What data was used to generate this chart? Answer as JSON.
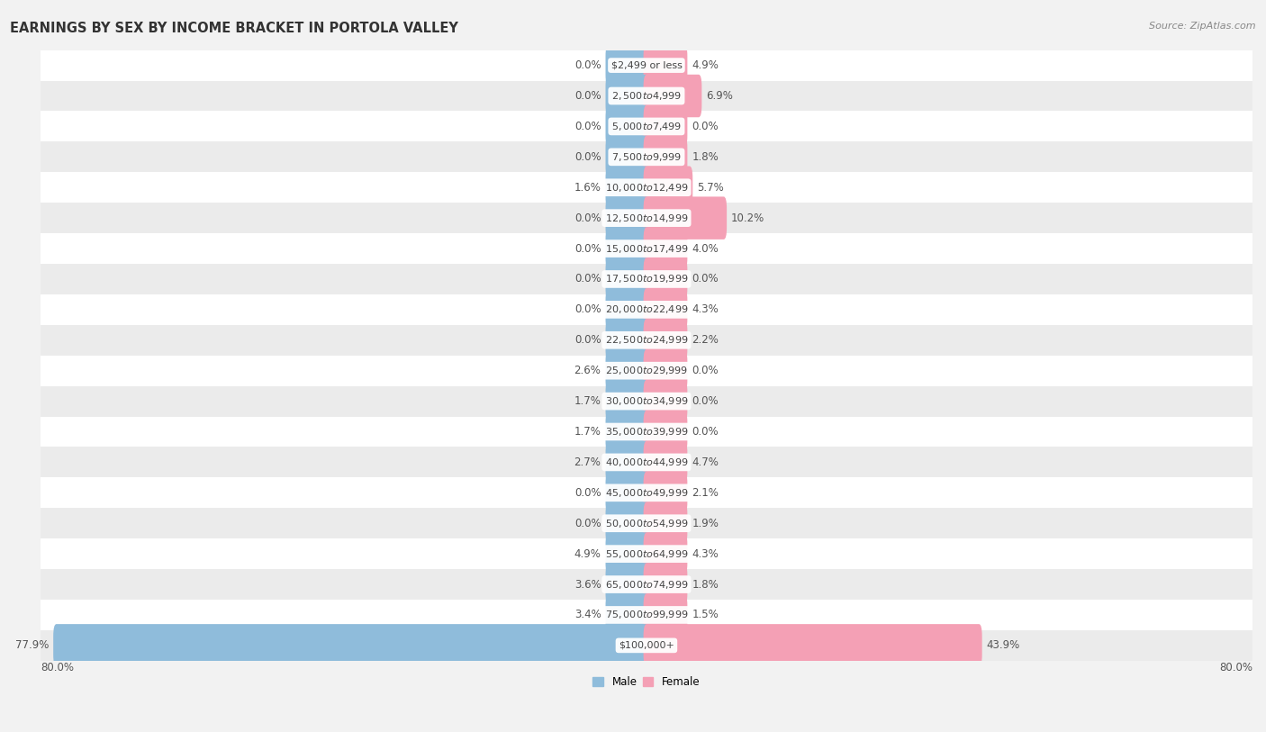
{
  "title": "EARNINGS BY SEX BY INCOME BRACKET IN PORTOLA VALLEY",
  "source": "Source: ZipAtlas.com",
  "categories": [
    "$2,499 or less",
    "$2,500 to $4,999",
    "$5,000 to $7,499",
    "$7,500 to $9,999",
    "$10,000 to $12,499",
    "$12,500 to $14,999",
    "$15,000 to $17,499",
    "$17,500 to $19,999",
    "$20,000 to $22,499",
    "$22,500 to $24,999",
    "$25,000 to $29,999",
    "$30,000 to $34,999",
    "$35,000 to $39,999",
    "$40,000 to $44,999",
    "$45,000 to $49,999",
    "$50,000 to $54,999",
    "$55,000 to $64,999",
    "$65,000 to $74,999",
    "$75,000 to $99,999",
    "$100,000+"
  ],
  "male": [
    0.0,
    0.0,
    0.0,
    0.0,
    1.6,
    0.0,
    0.0,
    0.0,
    0.0,
    0.0,
    2.6,
    1.7,
    1.7,
    2.7,
    0.0,
    0.0,
    4.9,
    3.6,
    3.4,
    77.9
  ],
  "female": [
    4.9,
    6.9,
    0.0,
    1.8,
    5.7,
    10.2,
    4.0,
    0.0,
    4.3,
    2.2,
    0.0,
    0.0,
    0.0,
    4.7,
    2.1,
    1.9,
    4.3,
    1.8,
    1.5,
    43.9
  ],
  "male_color": "#8fbcdb",
  "female_color": "#f4a0b5",
  "male_min_color": "#b8d4e8",
  "female_min_color": "#f9c5d0",
  "axis_max": 80.0,
  "min_bar": 5.0,
  "bg_color": "#f2f2f2",
  "row_light": "#ffffff",
  "row_dark": "#ebebeb",
  "title_fontsize": 10.5,
  "label_fontsize": 8.5,
  "source_fontsize": 8,
  "pct_fontsize": 8.5,
  "cat_fontsize": 8.0
}
